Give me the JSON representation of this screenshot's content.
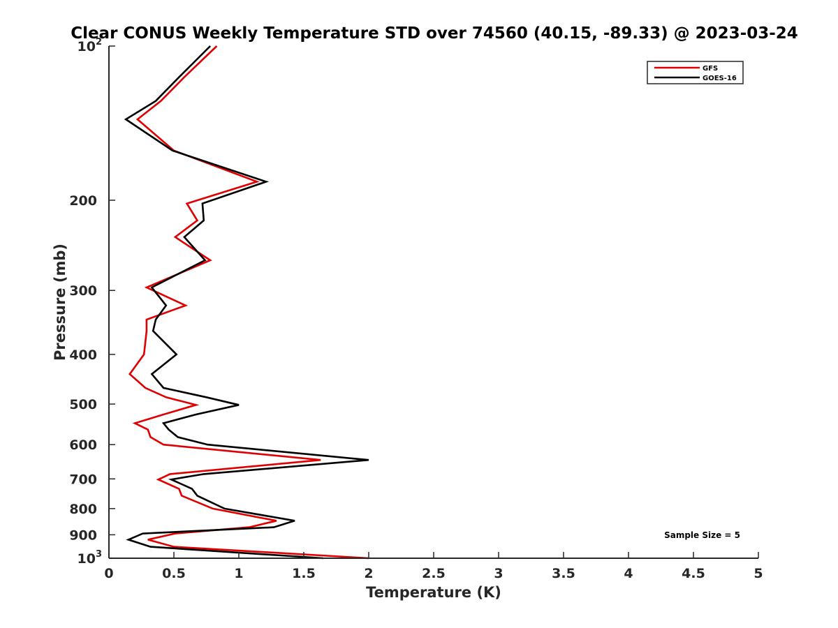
{
  "chart_data": {
    "type": "line",
    "title": "Clear CONUS Weekly Temperature STD over 74560 (40.15, -89.33) @ 2023-03-24",
    "xlabel": "Temperature (K)",
    "ylabel": "Pressure (mb)",
    "xlim": [
      0,
      5
    ],
    "ylim": [
      100,
      1000
    ],
    "y_scale": "log",
    "y_reversed": true,
    "x_ticks": [
      {
        "value": 0,
        "label": "0"
      },
      {
        "value": 0.5,
        "label": "0.5"
      },
      {
        "value": 1,
        "label": "1"
      },
      {
        "value": 1.5,
        "label": "1.5"
      },
      {
        "value": 2,
        "label": "2"
      },
      {
        "value": 2.5,
        "label": "2.5"
      },
      {
        "value": 3,
        "label": "3"
      },
      {
        "value": 3.5,
        "label": "3.5"
      },
      {
        "value": 4,
        "label": "4"
      },
      {
        "value": 4.5,
        "label": "4.5"
      },
      {
        "value": 5,
        "label": "5"
      }
    ],
    "y_ticks": [
      {
        "value": 100,
        "base": "10",
        "exp": "2"
      },
      {
        "value": 200,
        "label": "200"
      },
      {
        "value": 300,
        "label": "300"
      },
      {
        "value": 400,
        "label": "400"
      },
      {
        "value": 500,
        "label": "500"
      },
      {
        "value": 600,
        "label": "600"
      },
      {
        "value": 700,
        "label": "700"
      },
      {
        "value": 800,
        "label": "800"
      },
      {
        "value": 900,
        "label": "900"
      },
      {
        "value": 1000,
        "base": "10",
        "exp": "3"
      }
    ],
    "grid": false,
    "legend_position": "top-right",
    "annotation": "Sample Size = 5",
    "series": [
      {
        "name": "GFS",
        "color": "#e00000",
        "points": [
          [
            0.83,
            100
          ],
          [
            0.58,
            115
          ],
          [
            0.4,
            128
          ],
          [
            0.22,
            139
          ],
          [
            0.5,
            160
          ],
          [
            1.14,
            184
          ],
          [
            0.6,
            203
          ],
          [
            0.68,
            219
          ],
          [
            0.51,
            236
          ],
          [
            0.78,
            262
          ],
          [
            0.29,
            296
          ],
          [
            0.59,
            321
          ],
          [
            0.29,
            342
          ],
          [
            0.29,
            360
          ],
          [
            0.27,
            400
          ],
          [
            0.16,
            437
          ],
          [
            0.28,
            465
          ],
          [
            0.44,
            485
          ],
          [
            0.67,
            502
          ],
          [
            0.42,
            524
          ],
          [
            0.2,
            545
          ],
          [
            0.3,
            561
          ],
          [
            0.32,
            580
          ],
          [
            0.42,
            600
          ],
          [
            1.63,
            643
          ],
          [
            0.47,
            685
          ],
          [
            0.38,
            702
          ],
          [
            0.54,
            732
          ],
          [
            0.56,
            755
          ],
          [
            0.8,
            800
          ],
          [
            1.29,
            845
          ],
          [
            1.08,
            870
          ],
          [
            0.51,
            895
          ],
          [
            0.3,
            920
          ],
          [
            0.5,
            950
          ],
          [
            2.0,
            1000
          ]
        ]
      },
      {
        "name": "GOES-16",
        "color": "#000000",
        "points": [
          [
            0.78,
            100
          ],
          [
            0.54,
            115
          ],
          [
            0.36,
            128
          ],
          [
            0.13,
            139
          ],
          [
            0.49,
            160
          ],
          [
            1.21,
            184
          ],
          [
            0.72,
            203
          ],
          [
            0.73,
            219
          ],
          [
            0.58,
            236
          ],
          [
            0.74,
            262
          ],
          [
            0.33,
            296
          ],
          [
            0.44,
            321
          ],
          [
            0.36,
            342
          ],
          [
            0.34,
            360
          ],
          [
            0.52,
            400
          ],
          [
            0.33,
            437
          ],
          [
            0.42,
            465
          ],
          [
            0.75,
            485
          ],
          [
            1.0,
            502
          ],
          [
            0.67,
            524
          ],
          [
            0.42,
            545
          ],
          [
            0.46,
            561
          ],
          [
            0.53,
            580
          ],
          [
            0.76,
            600
          ],
          [
            2.0,
            643
          ],
          [
            0.73,
            685
          ],
          [
            0.48,
            702
          ],
          [
            0.64,
            732
          ],
          [
            0.68,
            755
          ],
          [
            0.89,
            800
          ],
          [
            1.43,
            845
          ],
          [
            1.27,
            870
          ],
          [
            0.26,
            895
          ],
          [
            0.15,
            920
          ],
          [
            0.32,
            950
          ],
          [
            1.65,
            1000
          ]
        ]
      }
    ]
  }
}
